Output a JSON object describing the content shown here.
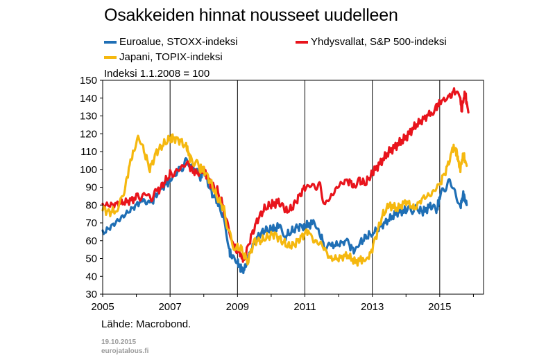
{
  "title": "Osakkeiden hinnat nousseet uudelleen",
  "note": "Indeksi 1.1.2008 = 100",
  "source": "Lähde: Macrobond.",
  "footer": {
    "date": "19.10.2015",
    "site": "eurojatalous.fi"
  },
  "legend": [
    {
      "label": "Euroalue, STOXX-indeksi",
      "color": "#1f6fb5"
    },
    {
      "label": "Yhdysvallat, S&P 500-indeksi",
      "color": "#e8141c"
    },
    {
      "label": "Japani, TOPIX-indeksi",
      "color": "#f5b80f"
    }
  ],
  "chart_data": {
    "type": "line",
    "title": "Osakkeiden hinnat nousseet uudelleen",
    "subtitle": "Indeksi 1.1.2008 = 100",
    "xlabel": "",
    "ylabel": "",
    "xlim": [
      2005.0,
      2016.3
    ],
    "ylim": [
      30,
      150
    ],
    "yticks": [
      30,
      40,
      50,
      60,
      70,
      80,
      90,
      100,
      110,
      120,
      130,
      140,
      150
    ],
    "xticks": [
      2005,
      2007,
      2009,
      2011,
      2013,
      2015
    ],
    "xgrid": [
      2007,
      2009,
      2011,
      2013,
      2015
    ],
    "grid": "vertical",
    "legend_position": "top",
    "series": [
      {
        "name": "Euroalue, STOXX-indeksi",
        "color": "#1f6fb5",
        "x": [
          2005.0,
          2005.25,
          2005.5,
          2005.75,
          2006.0,
          2006.25,
          2006.4,
          2006.6,
          2006.75,
          2007.0,
          2007.3,
          2007.45,
          2007.6,
          2007.75,
          2007.9,
          2008.0,
          2008.2,
          2008.4,
          2008.6,
          2008.75,
          2008.85,
          2009.0,
          2009.1,
          2009.2,
          2009.4,
          2009.6,
          2009.8,
          2010.0,
          2010.25,
          2010.4,
          2010.6,
          2010.8,
          2011.0,
          2011.25,
          2011.4,
          2011.6,
          2011.75,
          2012.0,
          2012.25,
          2012.45,
          2012.6,
          2012.8,
          2013.0,
          2013.25,
          2013.5,
          2013.75,
          2014.0,
          2014.3,
          2014.5,
          2014.75,
          2014.9,
          2015.0,
          2015.15,
          2015.3,
          2015.45,
          2015.6,
          2015.7,
          2015.8
        ],
        "y": [
          64,
          68,
          72,
          76,
          80,
          84,
          80,
          86,
          90,
          94,
          100,
          104,
          103,
          100,
          96,
          100,
          88,
          82,
          72,
          55,
          50,
          48,
          44,
          43,
          55,
          62,
          66,
          66,
          68,
          62,
          65,
          68,
          68,
          70,
          66,
          56,
          57,
          58,
          60,
          54,
          58,
          62,
          64,
          68,
          72,
          76,
          77,
          78,
          76,
          80,
          76,
          84,
          90,
          93,
          88,
          78,
          86,
          80
        ]
      },
      {
        "name": "Yhdysvallat, S&P 500-indeksi",
        "color": "#e8141c",
        "x": [
          2005.0,
          2005.25,
          2005.5,
          2005.75,
          2006.0,
          2006.3,
          2006.45,
          2006.6,
          2006.8,
          2007.0,
          2007.3,
          2007.45,
          2007.6,
          2007.8,
          2008.0,
          2008.2,
          2008.4,
          2008.6,
          2008.75,
          2008.9,
          2009.1,
          2009.2,
          2009.4,
          2009.6,
          2009.8,
          2010.0,
          2010.25,
          2010.4,
          2010.6,
          2010.8,
          2011.0,
          2011.3,
          2011.45,
          2011.6,
          2011.75,
          2012.0,
          2012.25,
          2012.45,
          2012.6,
          2012.8,
          2013.0,
          2013.25,
          2013.5,
          2013.75,
          2014.0,
          2014.25,
          2014.5,
          2014.75,
          2014.9,
          2015.0,
          2015.25,
          2015.45,
          2015.6,
          2015.65,
          2015.75,
          2015.85
        ],
        "y": [
          80,
          80,
          81,
          82,
          84,
          86,
          84,
          87,
          92,
          97,
          100,
          104,
          100,
          98,
          100,
          92,
          88,
          78,
          65,
          56,
          52,
          50,
          62,
          72,
          78,
          80,
          82,
          76,
          78,
          84,
          90,
          91,
          90,
          80,
          84,
          91,
          94,
          91,
          94,
          92,
          98,
          104,
          110,
          114,
          118,
          124,
          128,
          132,
          134,
          138,
          140,
          144,
          141,
          134,
          143,
          132
        ]
      },
      {
        "name": "Japani, TOPIX-indeksi",
        "color": "#f5b80f",
        "x": [
          2005.0,
          2005.2,
          2005.4,
          2005.55,
          2005.7,
          2005.9,
          2006.05,
          2006.2,
          2006.4,
          2006.6,
          2006.8,
          2007.0,
          2007.1,
          2007.3,
          2007.5,
          2007.6,
          2007.75,
          2007.9,
          2008.0,
          2008.2,
          2008.4,
          2008.6,
          2008.75,
          2008.9,
          2009.1,
          2009.3,
          2009.5,
          2009.7,
          2009.9,
          2010.1,
          2010.3,
          2010.5,
          2010.7,
          2010.9,
          2011.1,
          2011.25,
          2011.5,
          2011.75,
          2012.0,
          2012.25,
          2012.5,
          2012.75,
          2012.9,
          2013.1,
          2013.3,
          2013.5,
          2013.75,
          2014.0,
          2014.25,
          2014.5,
          2014.75,
          2015.0,
          2015.2,
          2015.4,
          2015.5,
          2015.6,
          2015.7,
          2015.8
        ],
        "y": [
          78,
          76,
          77,
          82,
          94,
          110,
          118,
          112,
          100,
          110,
          114,
          117,
          118,
          116,
          112,
          106,
          104,
          100,
          100,
          93,
          84,
          78,
          64,
          56,
          56,
          48,
          60,
          60,
          62,
          64,
          60,
          57,
          58,
          62,
          66,
          60,
          58,
          50,
          50,
          52,
          48,
          50,
          50,
          62,
          74,
          80,
          78,
          82,
          78,
          84,
          86,
          92,
          100,
          112,
          110,
          100,
          108,
          102
        ]
      }
    ]
  }
}
